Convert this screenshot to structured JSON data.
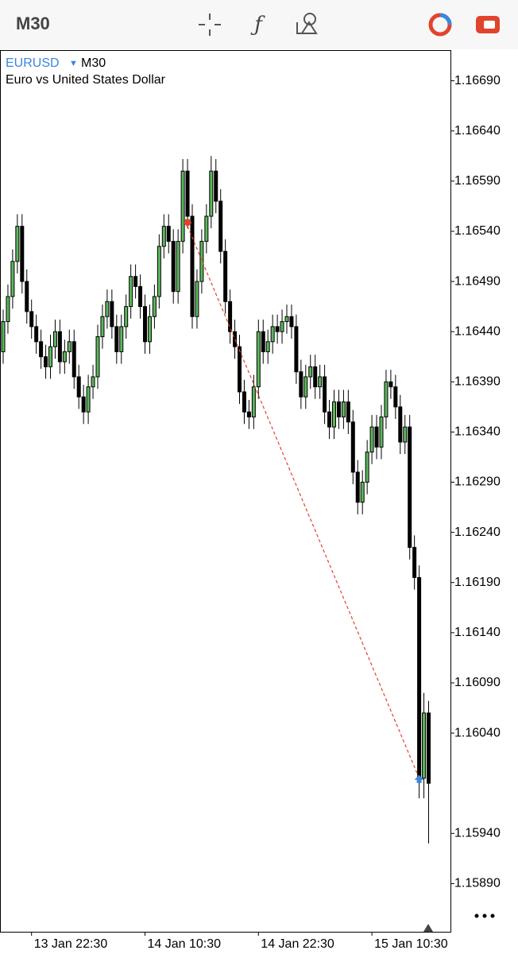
{
  "toolbar": {
    "timeframe": "M30"
  },
  "chart_data": {
    "type": "candlestick",
    "symbol": "EURUSD",
    "timeframe": "M30",
    "description": "Euro vs United States Dollar",
    "categories": [
      null,
      null,
      null,
      null,
      null,
      null,
      "13 Jan 22:30",
      null,
      null,
      null,
      null,
      null,
      null,
      null,
      null,
      null,
      null,
      null,
      null,
      null,
      null,
      null,
      null,
      null,
      null,
      null,
      null,
      null,
      null,
      null,
      "14 Jan 10:30",
      null,
      null,
      null,
      null,
      null,
      null,
      null,
      null,
      null,
      null,
      null,
      null,
      null,
      null,
      null,
      null,
      null,
      null,
      null,
      null,
      null,
      null,
      null,
      "14 Jan 22:30",
      null,
      null,
      null,
      null,
      null,
      null,
      null,
      null,
      null,
      null,
      null,
      null,
      null,
      null,
      null,
      null,
      null,
      null,
      null,
      null,
      null,
      null,
      null,
      "15 Jan 10:30",
      null,
      null,
      null,
      null,
      null,
      null,
      null,
      null,
      null,
      null,
      null,
      null
    ],
    "open": [
      1.1642,
      1.1645,
      1.16475,
      1.1651,
      1.16545,
      1.1649,
      1.1646,
      1.16445,
      1.1643,
      1.16415,
      1.16405,
      1.16425,
      1.1644,
      1.1641,
      1.1642,
      1.1643,
      1.16395,
      1.16375,
      1.1636,
      1.16385,
      1.16395,
      1.16435,
      1.16455,
      1.1647,
      1.16445,
      1.1642,
      1.16445,
      1.16465,
      1.16495,
      1.16485,
      1.16465,
      1.1643,
      1.16455,
      1.16475,
      1.16525,
      1.16545,
      1.1653,
      1.1648,
      1.1653,
      1.166,
      1.16555,
      1.16455,
      1.1649,
      1.1653,
      1.16555,
      1.166,
      1.1657,
      1.1652,
      1.1647,
      1.1644,
      1.16425,
      1.1638,
      1.1636,
      1.16355,
      1.16385,
      1.1644,
      1.1642,
      1.1643,
      1.16445,
      1.1644,
      1.1645,
      1.16455,
      1.16445,
      1.164,
      1.16375,
      1.16395,
      1.16405,
      1.16385,
      1.16395,
      1.1636,
      1.16345,
      1.1637,
      1.16355,
      1.1637,
      1.1635,
      1.163,
      1.1627,
      1.1629,
      1.1632,
      1.16345,
      1.16325,
      1.16355,
      1.1639,
      1.16385,
      1.16365,
      1.1633,
      1.16345,
      1.16225,
      1.16195,
      1.15995,
      1.1606
    ],
    "high": [
      1.16462,
      1.16487,
      1.16522,
      1.16557,
      1.16557,
      1.16502,
      1.16472,
      1.16457,
      1.16442,
      1.16427,
      1.16437,
      1.16452,
      1.16452,
      1.16432,
      1.16442,
      1.16442,
      1.16407,
      1.16387,
      1.16397,
      1.16407,
      1.16447,
      1.16467,
      1.16482,
      1.16482,
      1.16457,
      1.16457,
      1.16477,
      1.16507,
      1.16507,
      1.16497,
      1.16477,
      1.16467,
      1.16487,
      1.16537,
      1.16557,
      1.16557,
      1.16542,
      1.16542,
      1.16612,
      1.16612,
      1.16567,
      1.16502,
      1.16542,
      1.16567,
      1.16615,
      1.16612,
      1.16582,
      1.16532,
      1.16482,
      1.16452,
      1.16437,
      1.16392,
      1.16372,
      1.16397,
      1.16452,
      1.16452,
      1.16442,
      1.16457,
      1.16457,
      1.16462,
      1.16467,
      1.16467,
      1.16457,
      1.16412,
      1.16407,
      1.16417,
      1.16417,
      1.16407,
      1.16407,
      1.16372,
      1.16382,
      1.16382,
      1.16382,
      1.16382,
      1.16362,
      1.16312,
      1.16302,
      1.16332,
      1.16357,
      1.16357,
      1.16367,
      1.16402,
      1.16402,
      1.16397,
      1.16377,
      1.16357,
      1.16357,
      1.16237,
      1.16207,
      1.1608,
      1.16072
    ],
    "low": [
      1.16408,
      1.16438,
      1.16463,
      1.16498,
      1.16478,
      1.16448,
      1.16433,
      1.16418,
      1.16403,
      1.16393,
      1.16393,
      1.16413,
      1.16398,
      1.16398,
      1.16408,
      1.16383,
      1.16363,
      1.16348,
      1.16348,
      1.16373,
      1.16383,
      1.16423,
      1.16443,
      1.16433,
      1.16408,
      1.16408,
      1.16433,
      1.16453,
      1.16473,
      1.16453,
      1.16418,
      1.16418,
      1.16443,
      1.16463,
      1.16513,
      1.16518,
      1.16468,
      1.16468,
      1.16518,
      1.16543,
      1.16443,
      1.16443,
      1.16478,
      1.16518,
      1.16543,
      1.16558,
      1.16508,
      1.16458,
      1.16428,
      1.16413,
      1.16368,
      1.16348,
      1.16343,
      1.16343,
      1.16373,
      1.16408,
      1.16408,
      1.16418,
      1.16428,
      1.16428,
      1.16438,
      1.16433,
      1.16388,
      1.16363,
      1.16363,
      1.16383,
      1.16373,
      1.16373,
      1.16348,
      1.16333,
      1.16333,
      1.16343,
      1.16343,
      1.16338,
      1.16288,
      1.16258,
      1.16258,
      1.16278,
      1.16308,
      1.16313,
      1.16313,
      1.16343,
      1.16373,
      1.16353,
      1.16318,
      1.16318,
      1.16213,
      1.16183,
      1.15975,
      1.15975,
      1.1593
    ],
    "close": [
      1.1645,
      1.16475,
      1.1651,
      1.16545,
      1.1649,
      1.1646,
      1.16445,
      1.1643,
      1.16415,
      1.16405,
      1.16425,
      1.1644,
      1.1641,
      1.1642,
      1.1643,
      1.16395,
      1.16375,
      1.1636,
      1.16385,
      1.16395,
      1.16435,
      1.16455,
      1.1647,
      1.16445,
      1.1642,
      1.16445,
      1.16465,
      1.16495,
      1.16485,
      1.16465,
      1.1643,
      1.16455,
      1.16475,
      1.16525,
      1.16545,
      1.1653,
      1.1648,
      1.1653,
      1.166,
      1.16555,
      1.16455,
      1.1649,
      1.1653,
      1.16555,
      1.166,
      1.1657,
      1.1652,
      1.1647,
      1.1644,
      1.16425,
      1.1638,
      1.1636,
      1.16355,
      1.16385,
      1.1644,
      1.1642,
      1.1643,
      1.16445,
      1.1644,
      1.1645,
      1.16455,
      1.16445,
      1.164,
      1.16375,
      1.16395,
      1.16405,
      1.16385,
      1.16395,
      1.1636,
      1.16345,
      1.1637,
      1.16355,
      1.1637,
      1.1635,
      1.163,
      1.1627,
      1.1629,
      1.1632,
      1.16345,
      1.16325,
      1.16355,
      1.1639,
      1.16385,
      1.16365,
      1.1633,
      1.16345,
      1.16225,
      1.16195,
      1.15995,
      1.1606,
      1.1599
    ],
    "up_color": "#5cb85c",
    "down_color": "#000000",
    "trade": {
      "entry_price": 1.16545,
      "exit_price": 1.15995,
      "entry_color": "#e0442c",
      "exit_color": "#3a86e0"
    },
    "ylim": [
      1.15842,
      1.16719
    ],
    "yticks": [
      {
        "value": 1.1669,
        "label": "1.16690"
      },
      {
        "value": 1.1664,
        "label": "1.16640"
      },
      {
        "value": 1.1659,
        "label": "1.16590"
      },
      {
        "value": 1.1654,
        "label": "1.16540"
      },
      {
        "value": 1.1649,
        "label": "1.16490"
      },
      {
        "value": 1.1644,
        "label": "1.16440"
      },
      {
        "value": 1.1639,
        "label": "1.16390"
      },
      {
        "value": 1.1634,
        "label": "1.16340"
      },
      {
        "value": 1.1629,
        "label": "1.16290"
      },
      {
        "value": 1.1624,
        "label": "1.16240"
      },
      {
        "value": 1.1619,
        "label": "1.16190"
      },
      {
        "value": 1.1614,
        "label": "1.16140"
      },
      {
        "value": 1.1609,
        "label": "1.16090"
      },
      {
        "value": 1.1604,
        "label": "1.16040"
      },
      {
        "value": 1.1594,
        "label": "1.15940"
      },
      {
        "value": 1.1589,
        "label": "1.15890"
      }
    ],
    "grid": false
  }
}
